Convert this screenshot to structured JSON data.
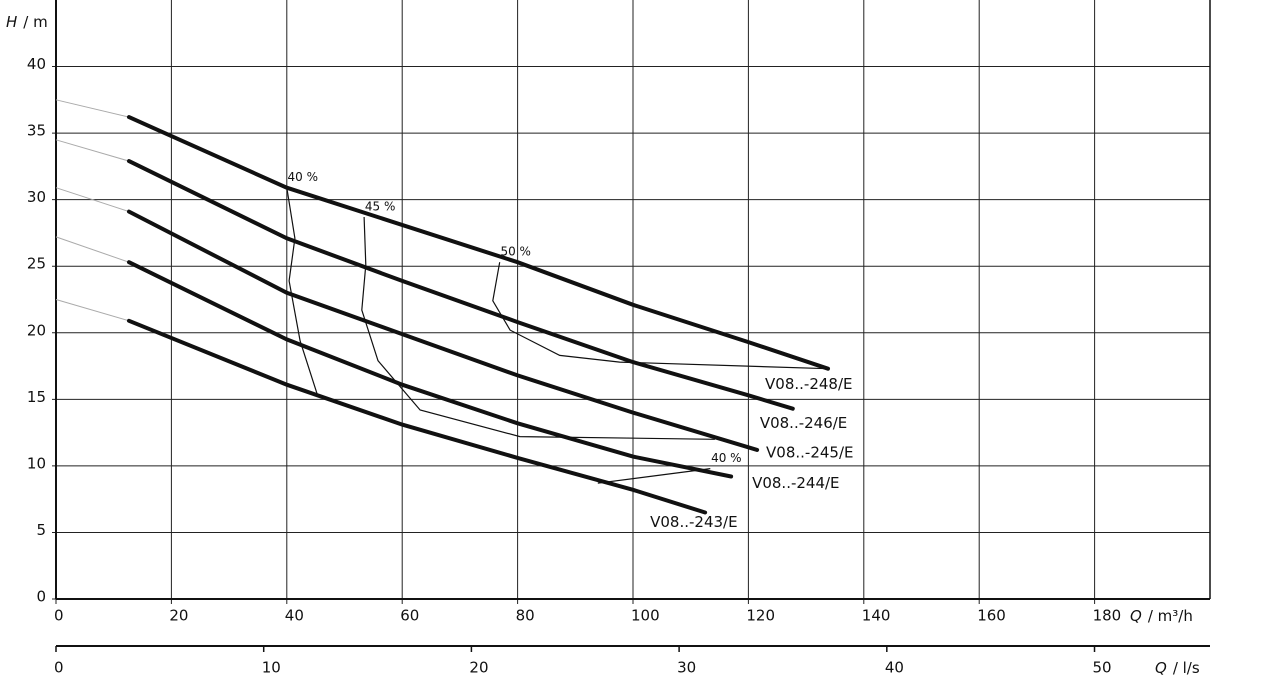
{
  "chart_data": {
    "type": "line",
    "y_label": {
      "symbol": "H",
      "unit": "/ m"
    },
    "x_label": {
      "symbol": "Q",
      "unit": "/ m³/h"
    },
    "x2_label": {
      "symbol": "Q",
      "unit": "/ l/s"
    },
    "xlim": [
      0,
      200
    ],
    "xticks": [
      0,
      20,
      40,
      60,
      80,
      100,
      120,
      140,
      160,
      180
    ],
    "x2lim": [
      0,
      55.56
    ],
    "x2ticks": [
      0,
      10,
      20,
      30,
      40,
      50
    ],
    "ylim": [
      0,
      45
    ],
    "yticks": [
      0,
      5,
      10,
      15,
      20,
      25,
      30,
      35,
      40
    ],
    "grid": true,
    "color": "#111111",
    "ext_color": "#aaaaaa",
    "series": [
      {
        "name": "V08..-248/E",
        "x": [
          12.65,
          40,
          80,
          100,
          120,
          133.8
        ],
        "values": [
          36.2,
          30.9,
          25.3,
          22.1,
          19.3,
          17.3
        ],
        "ext_x": [
          0,
          12.65
        ],
        "ext_values": [
          37.5,
          36.2
        ]
      },
      {
        "name": "V08..-246/E",
        "x": [
          12.65,
          40,
          60,
          80,
          100,
          120,
          127.7
        ],
        "values": [
          32.9,
          27.1,
          23.9,
          20.8,
          17.8,
          15.3,
          14.3
        ],
        "ext_x": [
          0,
          12.65
        ],
        "ext_values": [
          34.5,
          32.9
        ]
      },
      {
        "name": "V08..-245/E",
        "x": [
          12.65,
          40,
          60,
          80,
          100,
          121.5
        ],
        "values": [
          29.1,
          23.0,
          19.9,
          16.8,
          14.0,
          11.2
        ],
        "ext_x": [
          0,
          12.65
        ],
        "ext_values": [
          30.9,
          29.1
        ]
      },
      {
        "name": "V08..-244/E",
        "x": [
          12.65,
          40,
          60,
          80,
          100,
          117
        ],
        "values": [
          25.3,
          19.5,
          16.1,
          13.2,
          10.7,
          9.2
        ],
        "ext_x": [
          0,
          12.65
        ],
        "ext_values": [
          27.2,
          25.3
        ]
      },
      {
        "name": "V08..-243/E",
        "x": [
          12.65,
          40,
          60,
          80,
          100,
          112.5
        ],
        "values": [
          20.9,
          16.1,
          13.1,
          10.6,
          8.2,
          6.5
        ],
        "ext_x": [
          0,
          12.65
        ],
        "ext_values": [
          22.5,
          20.9
        ]
      }
    ],
    "efficiency_lines": [
      {
        "label": "40 %",
        "x": [
          40,
          41.4,
          40.4,
          42.3,
          45.4
        ],
        "values": [
          30.9,
          27.1,
          23.9,
          19.4,
          15.2
        ]
      },
      {
        "label": "45 %",
        "x": [
          53.4,
          53.7,
          53,
          55.8,
          63.1,
          80.4,
          114.2
        ],
        "values": [
          28.7,
          25.1,
          21.7,
          17.9,
          14.2,
          12.2,
          12.0
        ]
      },
      {
        "label": "50 %",
        "x": [
          76.9,
          75.7,
          78.7,
          87.3,
          97.7,
          133.8
        ],
        "values": [
          25.3,
          22.4,
          20.2,
          18.3,
          17.8,
          17.3
        ]
      },
      {
        "label": "40 %",
        "x": [
          93.9,
          113.4
        ],
        "values": [
          8.7,
          9.8
        ]
      }
    ]
  }
}
